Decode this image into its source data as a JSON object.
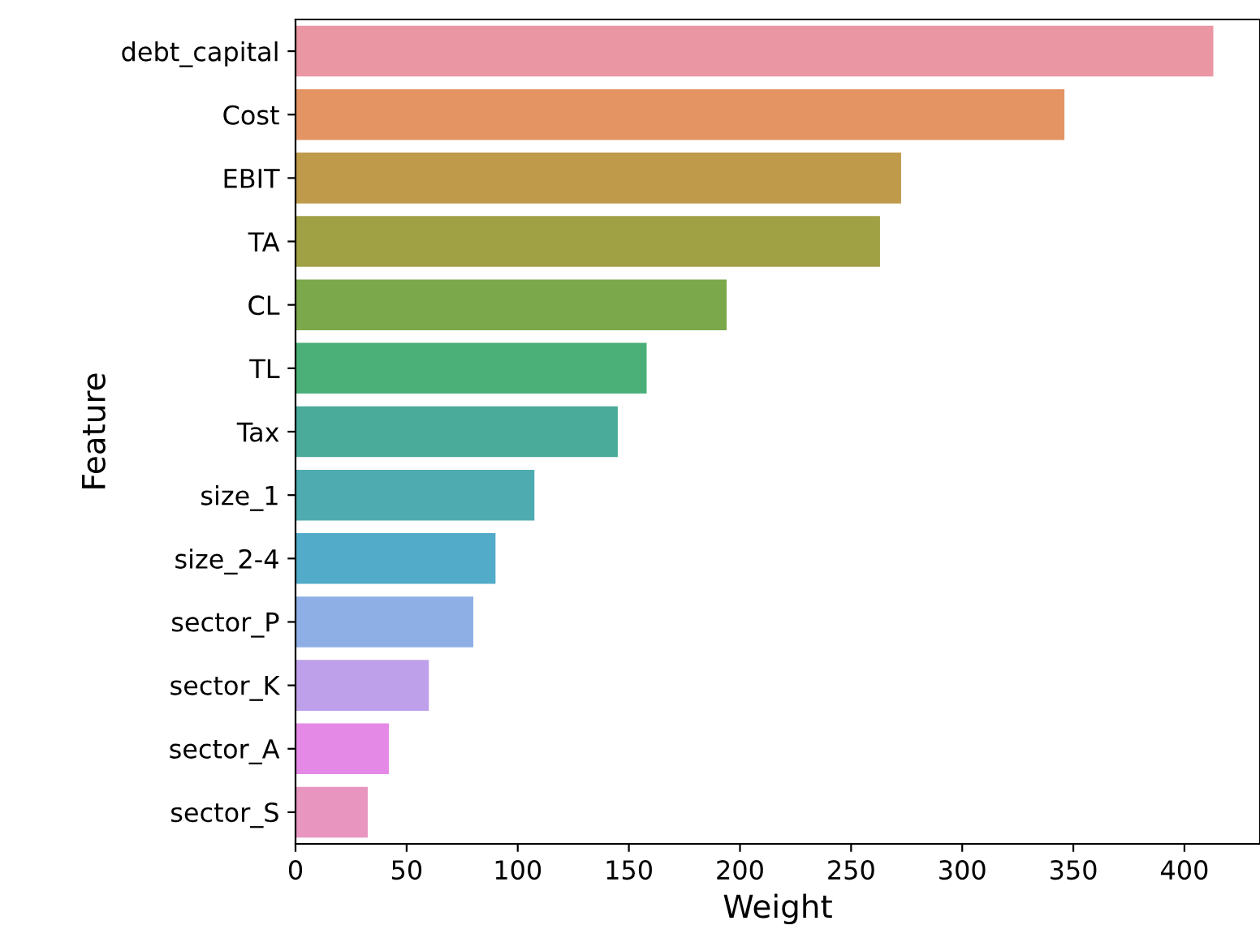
{
  "chart_data": {
    "type": "bar",
    "orientation": "horizontal",
    "xlabel": "Weight",
    "ylabel": "Feature",
    "categories": [
      "debt_capital",
      "Cost",
      "EBIT",
      "TA",
      "CL",
      "TL",
      "Tax",
      "size_1",
      "size_2-4",
      "sector_P",
      "sector_K",
      "sector_A",
      "sector_S"
    ],
    "values": [
      413,
      346,
      272.5,
      263,
      194,
      158,
      145,
      107.5,
      90,
      80,
      60,
      42,
      32.5
    ],
    "colors": [
      "#ea96a3",
      "#e39462",
      "#bf9a4b",
      "#a0a045",
      "#7ba84a",
      "#4ab077",
      "#4aab9a",
      "#4eabb0",
      "#52abc9",
      "#8eaee6",
      "#bea0ea",
      "#e589e6",
      "#e896c0"
    ],
    "xlim": [
      0,
      434
    ],
    "xticks": [
      0,
      50,
      100,
      150,
      200,
      250,
      300,
      350,
      400
    ],
    "grid": false,
    "legend": false
  }
}
